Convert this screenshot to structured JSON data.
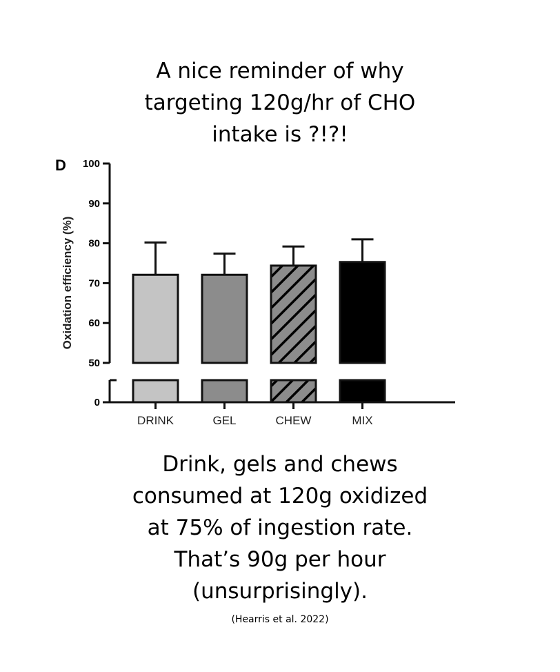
{
  "header": {
    "lines": [
      "A nice reminder of why",
      "targeting 120g/hr of CHO",
      "intake is ?!?!"
    ]
  },
  "footer": {
    "lines": [
      "Drink, gels and chews",
      "consumed at 120g oxidized",
      "at 75% of ingestion rate.",
      "That’s 90g per hour",
      "(unsurprisingly)."
    ],
    "citation": "(Hearris et al. 2022)"
  },
  "chart_data": {
    "type": "bar",
    "panel_label": "D",
    "title": "",
    "xlabel": "",
    "ylabel": "Oxidation efficiency (%)",
    "categories": [
      "DRINK",
      "GEL",
      "CHEW",
      "MIX"
    ],
    "values": [
      72.1,
      72.1,
      74.4,
      75.3
    ],
    "error_upper": [
      80.2,
      77.4,
      79.2,
      81.0
    ],
    "fills": [
      "#c4c4c4",
      "#8c8c8c",
      "hatch",
      "#000000"
    ],
    "ylim": [
      0,
      100
    ],
    "axis_break": [
      0,
      50
    ],
    "yticks": [
      "0",
      "50",
      "60",
      "70",
      "80",
      "90",
      "100"
    ],
    "grid": false
  }
}
